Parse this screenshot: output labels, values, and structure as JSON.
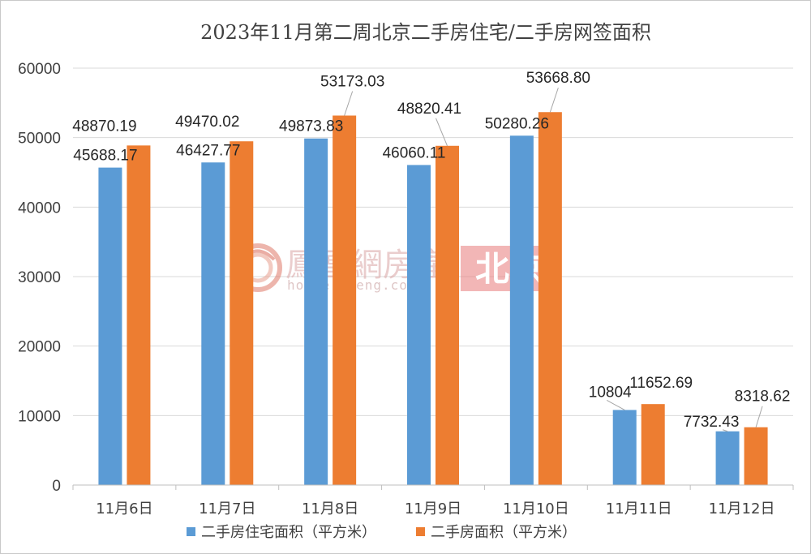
{
  "chart_data": {
    "type": "bar",
    "title": "2023年11月第二周北京二手房住宅/二手房网签面积",
    "categories": [
      "11月6日",
      "11月7日",
      "11月8日",
      "11月9日",
      "11月10日",
      "11月11日",
      "11月12日"
    ],
    "series": [
      {
        "name": "二手房住宅面积（平方米）",
        "color": "#5b9bd5",
        "values": [
          45688.17,
          46427.77,
          49873.83,
          46060.11,
          50280.26,
          10804,
          7732.43
        ],
        "labels": [
          "45688.17",
          "46427.77",
          "49873.83",
          "46060.11",
          "50280.26",
          "10804",
          "7732.43"
        ]
      },
      {
        "name": "二手房面积（平方米）",
        "color": "#ed7d31",
        "values": [
          48870.19,
          49470.02,
          53173.03,
          48820.41,
          53668.8,
          11652.69,
          8318.62
        ],
        "labels": [
          "48870.19",
          "49470.02",
          "53173.03",
          "48820.41",
          "53668.80",
          "11652.69",
          "8318.62"
        ]
      }
    ],
    "ylim": [
      0,
      60000
    ],
    "yticks": [
      0,
      10000,
      20000,
      30000,
      40000,
      50000,
      60000
    ],
    "grid": true,
    "legend_position": "bottom"
  },
  "watermark": {
    "brand": "鳳凰網房產",
    "url": "house.ifeng.com",
    "city": "北京"
  }
}
